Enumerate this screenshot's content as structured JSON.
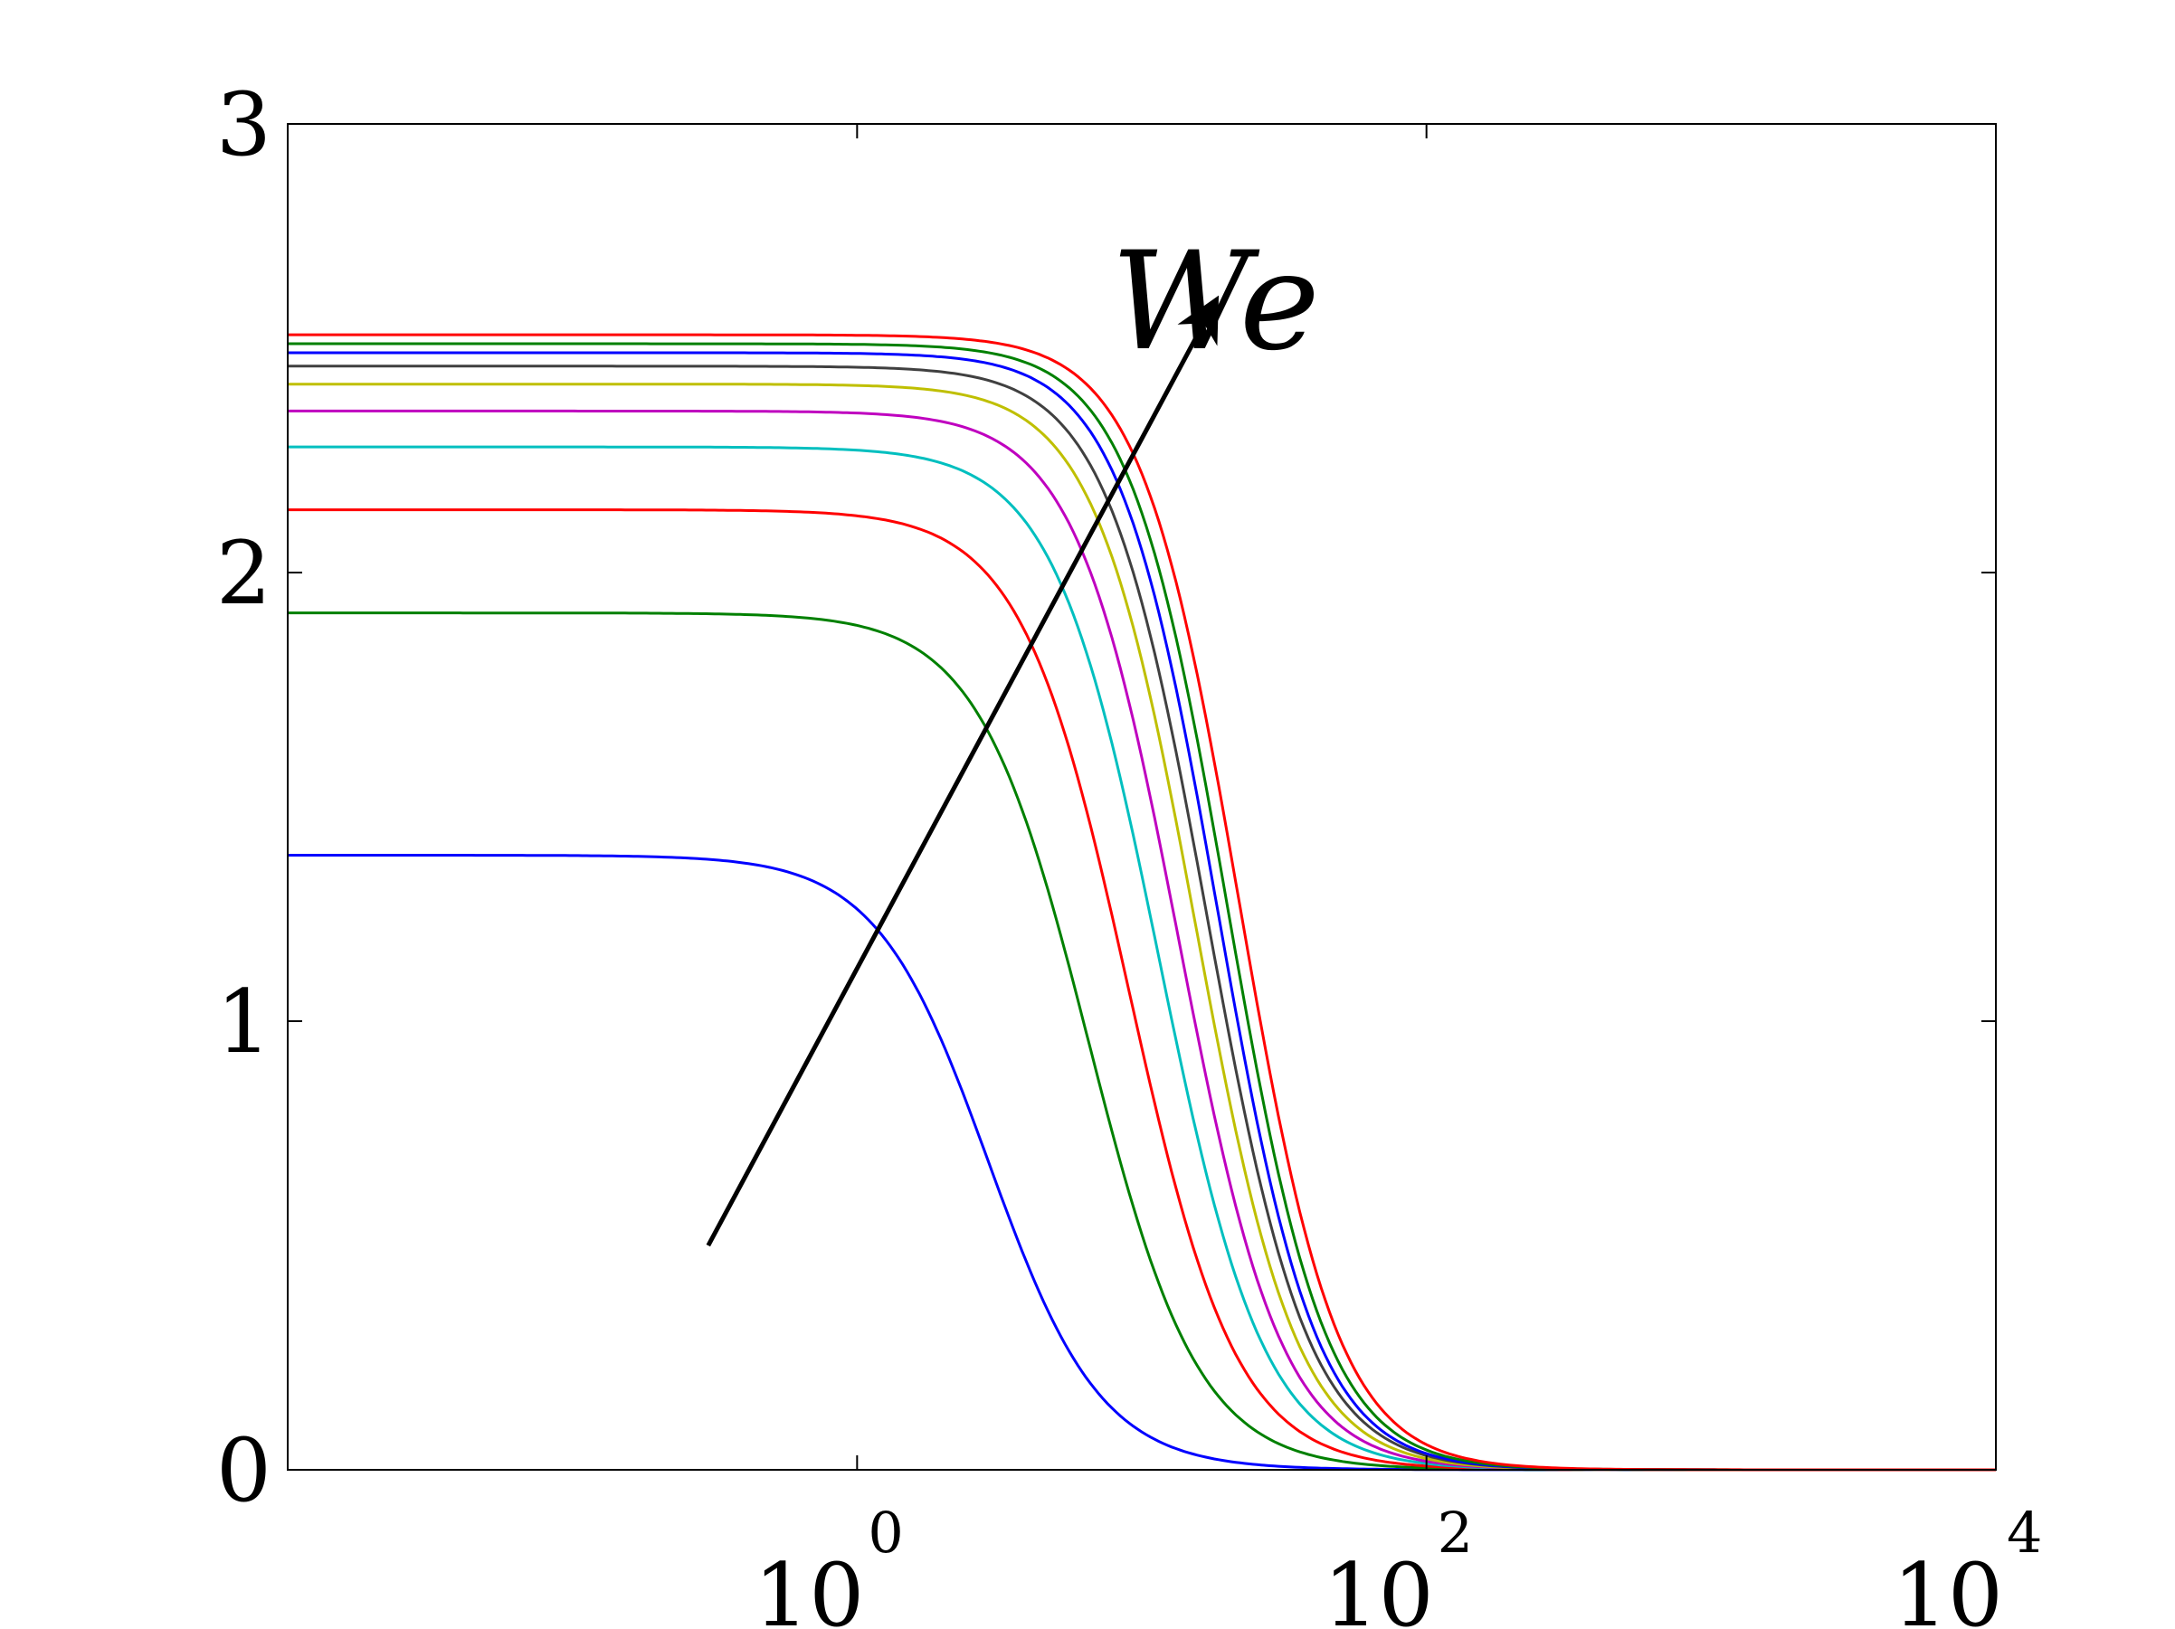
{
  "chart_data": {
    "type": "line",
    "xscale": "log",
    "xlim": [
      0.01,
      10000
    ],
    "ylim": [
      0,
      3
    ],
    "x_ticks": [
      {
        "value": 1,
        "base": "10",
        "exp": "0"
      },
      {
        "value": 100,
        "base": "10",
        "exp": "2"
      },
      {
        "value": 10000,
        "base": "10",
        "exp": "4"
      }
    ],
    "y_ticks": [
      {
        "value": 0,
        "label": "0"
      },
      {
        "value": 1,
        "label": "1"
      },
      {
        "value": 2,
        "label": "2"
      },
      {
        "value": 3,
        "label": "3"
      }
    ],
    "grid": false,
    "annotation": {
      "text": "We",
      "arrow_from": [
        0.3,
        0.5
      ],
      "arrow_to": [
        18,
        2.6
      ]
    },
    "series": [
      {
        "color": "#0000ff",
        "plateau": 1.37,
        "x_half": 2.9,
        "slope": 2.2
      },
      {
        "color": "#008000",
        "plateau": 1.91,
        "x_half": 6.5,
        "slope": 2.25
      },
      {
        "color": "#ff0000",
        "plateau": 2.14,
        "x_half": 9.0,
        "slope": 2.3
      },
      {
        "color": "#00bfbf",
        "plateau": 2.28,
        "x_half": 11.5,
        "slope": 2.35
      },
      {
        "color": "#bf00bf",
        "plateau": 2.36,
        "x_half": 13.5,
        "slope": 2.4
      },
      {
        "color": "#bfbf00",
        "plateau": 2.42,
        "x_half": 15.5,
        "slope": 2.45
      },
      {
        "color": "#404040",
        "plateau": 2.46,
        "x_half": 17.0,
        "slope": 2.45
      },
      {
        "color": "#0000ff",
        "plateau": 2.49,
        "x_half": 18.5,
        "slope": 2.5
      },
      {
        "color": "#008000",
        "plateau": 2.51,
        "x_half": 20.0,
        "slope": 2.5
      },
      {
        "color": "#ff0000",
        "plateau": 2.53,
        "x_half": 22.0,
        "slope": 2.5
      }
    ]
  }
}
